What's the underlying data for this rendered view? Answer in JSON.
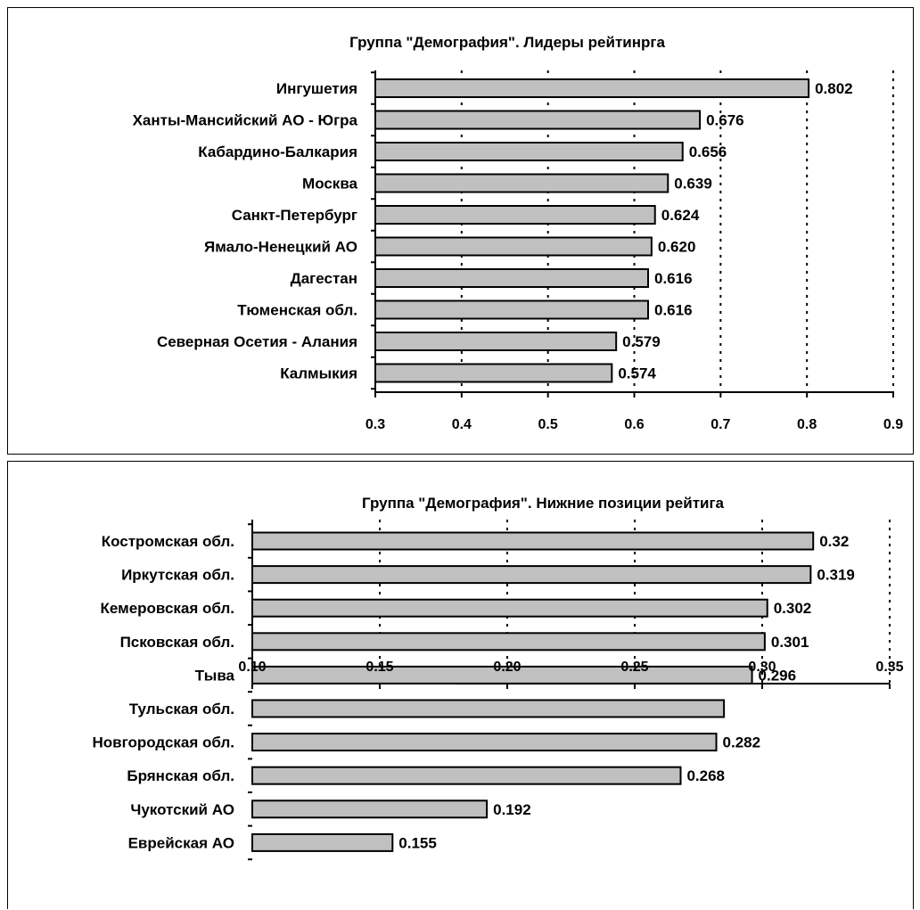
{
  "chart_data": [
    {
      "type": "bar",
      "orientation": "horizontal",
      "title": "Группа \"Демография\". Лидеры рейтинрга",
      "categories": [
        "Ингушетия",
        "Ханты-Мансийский АО - Югра",
        "Кабардино-Балкария",
        "Москва",
        "Санкт-Петербург",
        "Ямало-Ненецкий АО",
        "Дагестан",
        "Тюменская обл.",
        "Северная Осетия - Алания",
        "Калмыкия"
      ],
      "values": [
        0.802,
        0.676,
        0.656,
        0.639,
        0.624,
        0.62,
        0.616,
        0.616,
        0.579,
        0.574
      ],
      "value_labels": [
        "0.802",
        "0.676",
        "0.656",
        "0.639",
        "0.624",
        "0.620",
        "0.616",
        "0.616",
        "0.579",
        "0.574"
      ],
      "xlim": [
        0.3,
        0.9
      ],
      "ticks": [
        0.3,
        0.4,
        0.5,
        0.6,
        0.7,
        0.8,
        0.9
      ],
      "tick_labels": [
        "0.3",
        "0.4",
        "0.5",
        "0.6",
        "0.7",
        "0.8",
        "0.9"
      ],
      "grid": "vertical dotted",
      "bar_color": "#c0c0c0"
    },
    {
      "type": "bar",
      "orientation": "horizontal",
      "title": "Группа \"Демография\". Нижние позиции рейтига",
      "categories": [
        "Костромская обл.",
        "Иркутская обл.",
        "Кемеровская обл.",
        "Псковская обл.",
        "Тыва",
        "Тульская обл.",
        "Новгородская обл.",
        "Брянская обл.",
        "Чукотский АО",
        "Еврейская АО"
      ],
      "values": [
        0.32,
        0.319,
        0.302,
        0.301,
        0.296,
        0.285,
        0.282,
        0.268,
        0.192,
        0.155
      ],
      "value_labels": [
        "0.32",
        "0.319",
        "0.302",
        "0.301",
        "0.296",
        "",
        "0.282",
        "0.268",
        "0.192",
        "0.155"
      ],
      "xlim": [
        0.1,
        0.35
      ],
      "ticks": [
        0.1,
        0.15,
        0.2,
        0.25,
        0.3,
        0.35
      ],
      "tick_labels": [
        "0.10",
        "0.15",
        "0.20",
        "0.25",
        "0.30",
        "0.35"
      ],
      "grid": "vertical dotted",
      "bar_color": "#c0c0c0"
    }
  ]
}
